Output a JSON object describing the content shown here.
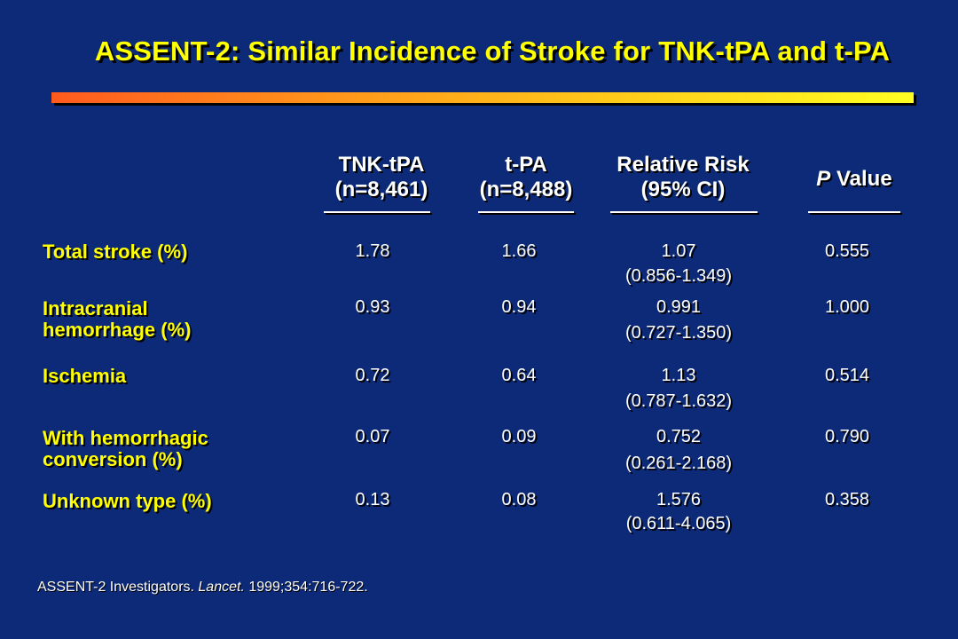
{
  "title": "ASSENT-2: Similar Incidence of Stroke for TNK-tPA and t-PA",
  "columns": [
    {
      "line1": "TNK-tPA",
      "line2": "(n=8,461)"
    },
    {
      "line1": "t-PA",
      "line2": "(n=8,488)"
    },
    {
      "line1": "Relative Risk",
      "line2": "(95% CI)"
    },
    {
      "p": "P",
      "rest": " Value"
    }
  ],
  "rows": [
    {
      "label": "Total stroke (%)",
      "tnk": "1.78",
      "tpa": "1.66",
      "rr": "1.07",
      "ci": "(0.856-1.349)",
      "p": "0.555"
    },
    {
      "label": "Intracranial hemorrhage (%)",
      "tnk": "0.93",
      "tpa": "0.94",
      "rr": "0.991",
      "ci": "(0.727-1.350)",
      "p": "1.000"
    },
    {
      "label": "Ischemia",
      "tnk": "0.72",
      "tpa": "0.64",
      "rr": "1.13",
      "ci": "(0.787-1.632)",
      "p": "0.514"
    },
    {
      "label": "With hemorrhagic conversion (%)",
      "tnk": "0.07",
      "tpa": "0.09",
      "rr": "0.752",
      "ci": "(0.261-2.168)",
      "p": "0.790"
    },
    {
      "label": "Unknown type (%)",
      "tnk": "0.13",
      "tpa": "0.08",
      "rr": "1.576",
      "ci": "(0.611-4.065)",
      "p": "0.358"
    }
  ],
  "footnote": {
    "authors": "ASSENT-2 Investigators. ",
    "journal": "Lancet.",
    "citation": " 1999;354:716-722."
  },
  "colors": {
    "background": "#0c2a78",
    "title": "#ffff00",
    "label": "#ffff00",
    "text": "#ffffff",
    "bar_start": "#ff5a1e",
    "bar_end": "#ffff22"
  }
}
